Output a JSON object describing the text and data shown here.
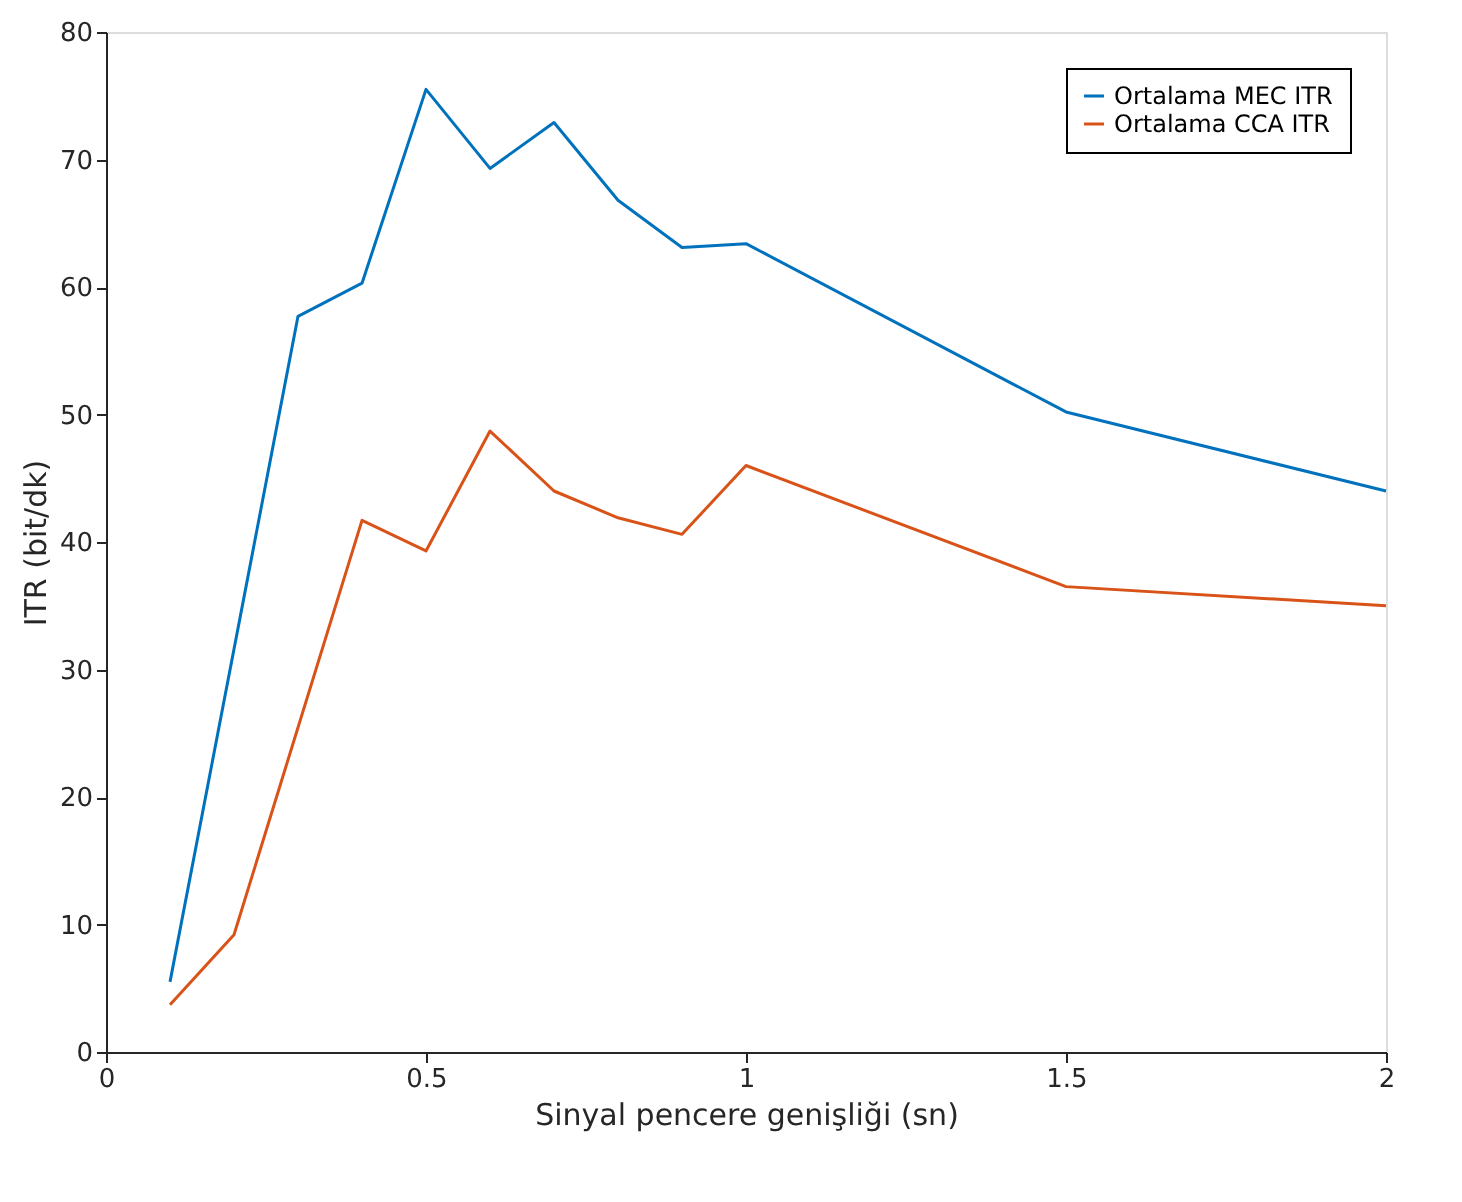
{
  "chart_data": {
    "type": "line",
    "xlabel": "Sinyal pencere genişliği (sn)",
    "ylabel": "ITR (bit/dk)",
    "xlim": [
      0,
      2
    ],
    "xticks": [
      0,
      0.5,
      1,
      1.5,
      2
    ],
    "ylim": [
      0,
      80
    ],
    "yticks": [
      0,
      10,
      20,
      30,
      40,
      50,
      60,
      70,
      80
    ],
    "grid": false,
    "legend": "top right",
    "marker": "none",
    "line_style": "solid",
    "series": [
      {
        "name": "Ortalama MEC ITR",
        "color": "#0072bd",
        "x": [
          0.1,
          0.3,
          0.4,
          0.5,
          0.6,
          0.7,
          0.8,
          0.9,
          1.0,
          1.5,
          2
        ],
        "values": [
          5.5,
          57.7,
          60.3,
          75.5,
          69.3,
          72.9,
          66.8,
          63.1,
          63.4,
          50.2,
          44.0
        ]
      },
      {
        "name": "Ortalama CCA ITR",
        "color": "#d95319",
        "x": [
          0.1,
          0.2,
          0.4,
          0.5,
          0.6,
          0.7,
          0.8,
          0.9,
          1.0,
          1.5,
          2
        ],
        "values": [
          3.7,
          9.2,
          41.7,
          39.3,
          48.7,
          44.0,
          41.9,
          40.6,
          46.0,
          36.5,
          35.0
        ]
      }
    ]
  }
}
